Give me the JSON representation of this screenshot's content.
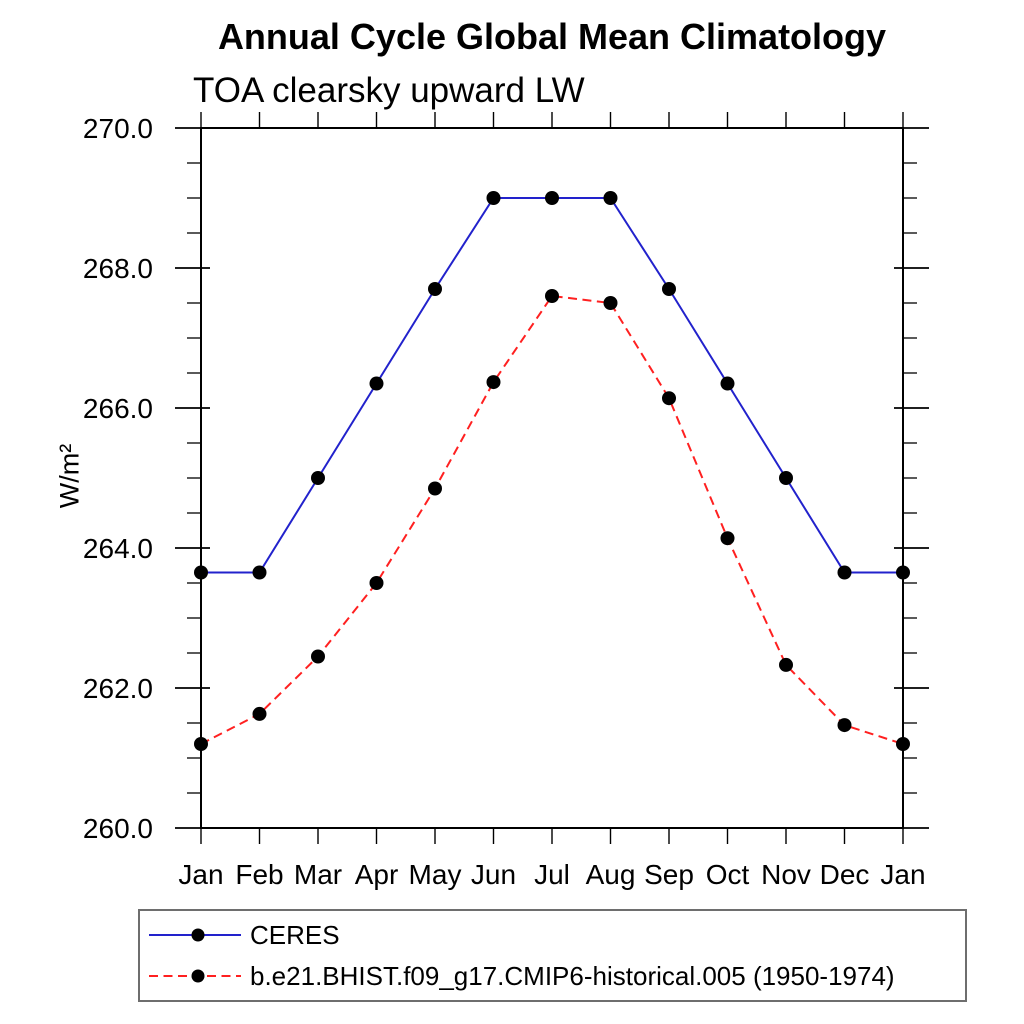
{
  "chart_data": {
    "type": "line",
    "title": "Annual Cycle Global Mean Climatology",
    "subtitle": "TOA clearsky upward LW",
    "ylabel": "W/m²",
    "xlabel": "",
    "x_categories": [
      "Jan",
      "Feb",
      "Mar",
      "Apr",
      "May",
      "Jun",
      "Jul",
      "Aug",
      "Sep",
      "Oct",
      "Nov",
      "Dec",
      "Jan"
    ],
    "ylim": [
      260.0,
      270.0
    ],
    "ytick_major_values": [
      260,
      262,
      264,
      266,
      268,
      270
    ],
    "ytick_major_labels": [
      "260.0",
      "262.0",
      "264.0",
      "266.0",
      "268.0",
      "270.0"
    ],
    "ytick_minor_step": 0.5,
    "grid": "off",
    "legend_position": "below-plot-left",
    "axis_color": "#000000",
    "marker": "filled-circle",
    "marker_color": "#000000",
    "series": [
      {
        "name": "CERES",
        "color": "#2222cc",
        "line_style": "solid",
        "values": [
          263.65,
          263.65,
          265.0,
          266.35,
          267.7,
          269.0,
          269.0,
          269.0,
          267.7,
          266.35,
          265.0,
          263.65,
          263.65
        ]
      },
      {
        "name": "b.e21.BHIST.f09_g17.CMIP6-historical.005 (1950-1974)",
        "color": "#ff2020",
        "line_style": "dashed",
        "values": [
          261.2,
          261.63,
          262.45,
          263.5,
          264.85,
          266.37,
          267.6,
          267.5,
          266.14,
          264.14,
          262.33,
          261.47,
          261.2
        ]
      }
    ]
  }
}
